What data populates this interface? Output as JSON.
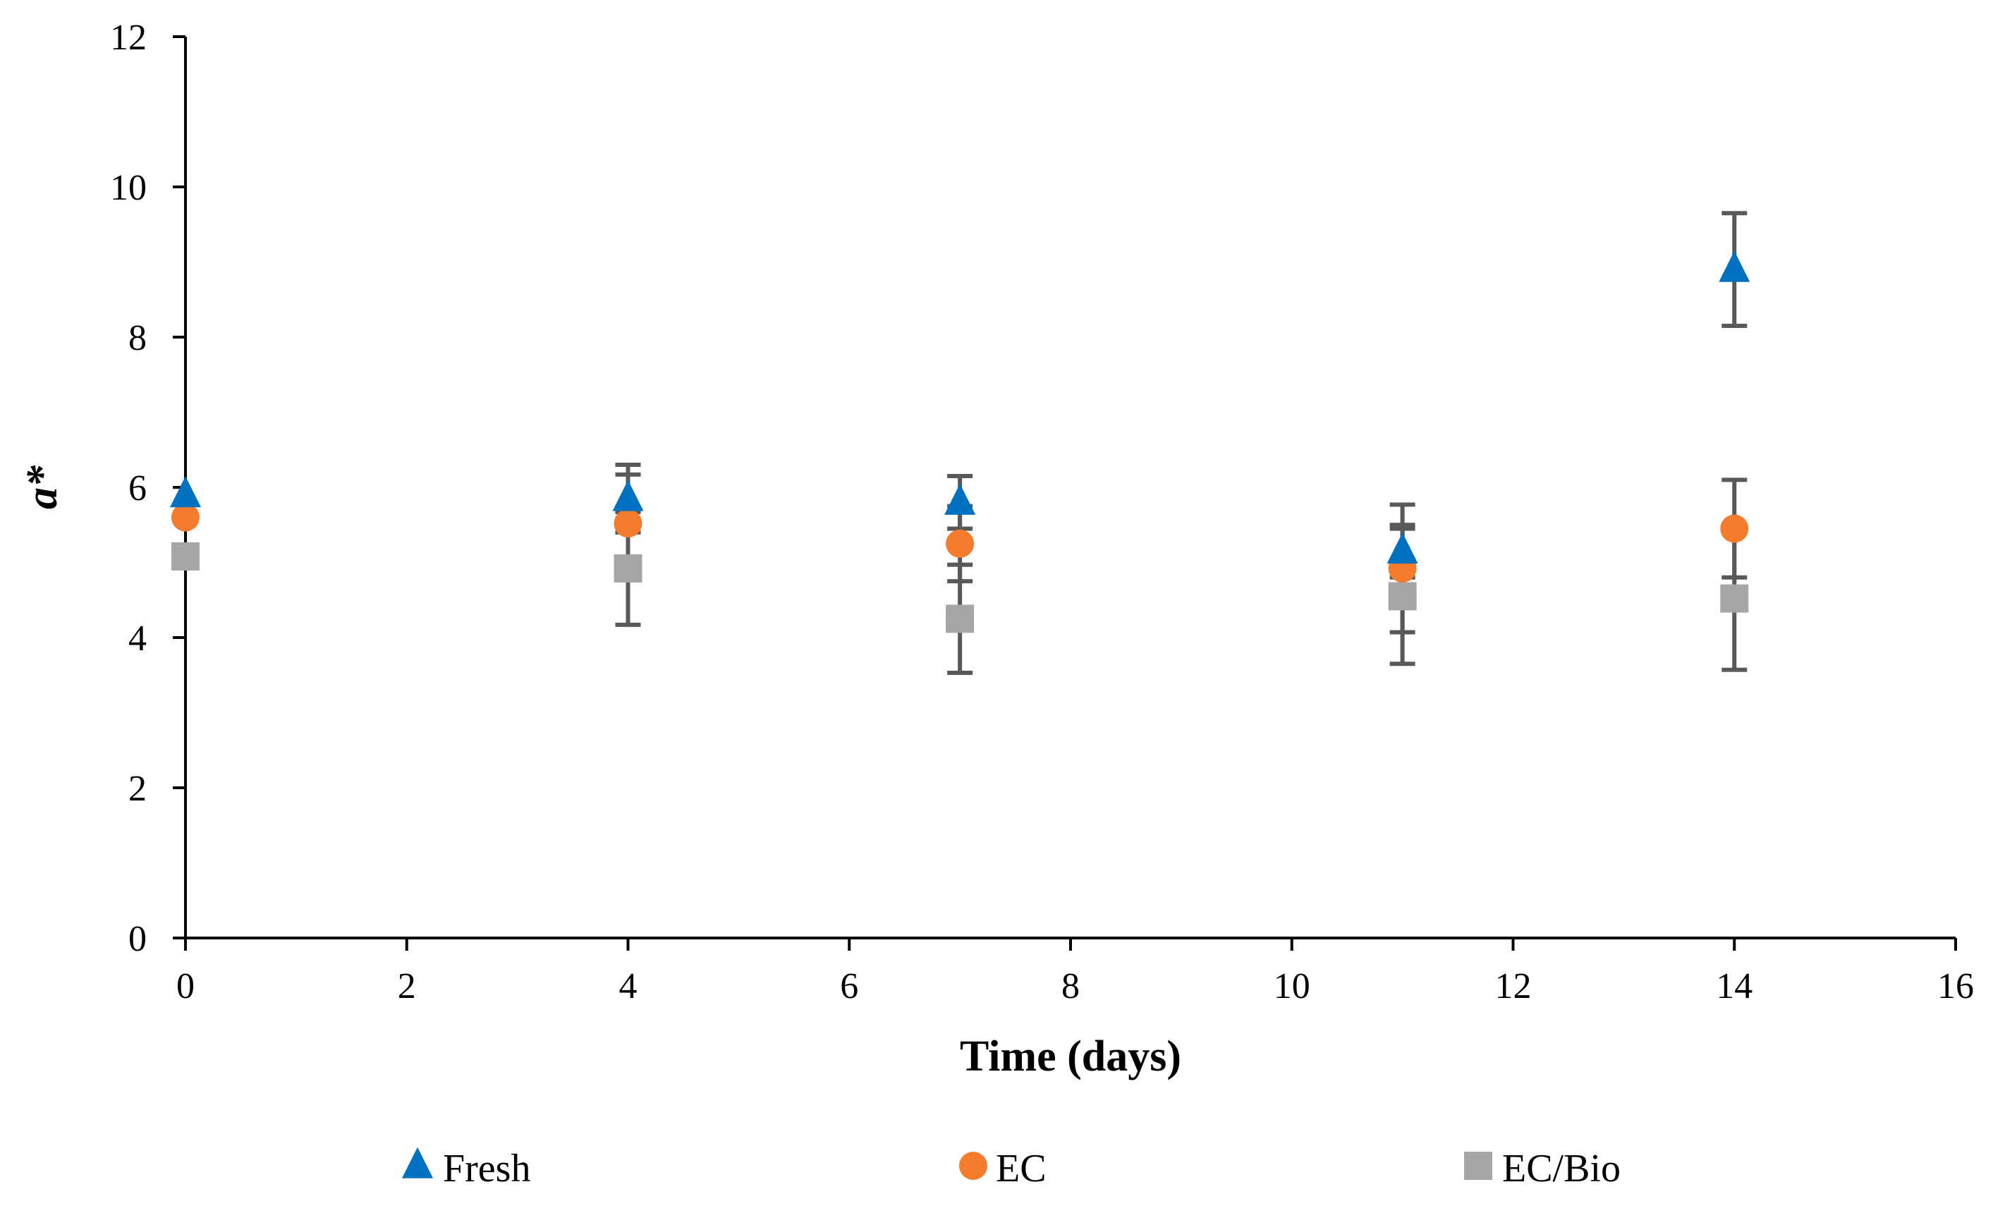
{
  "chart_data": {
    "type": "scatter",
    "title": "",
    "xlabel": "Time (days)",
    "ylabel": "a*",
    "xlim": [
      0,
      16
    ],
    "ylim": [
      0,
      12
    ],
    "xticks": [
      0,
      2,
      4,
      6,
      8,
      10,
      12,
      14,
      16
    ],
    "yticks": [
      0,
      2,
      4,
      6,
      8,
      10,
      12
    ],
    "grid": false,
    "legend_position": "bottom",
    "series": [
      {
        "name": "Fresh",
        "marker": "triangle",
        "color": "#0070C0",
        "x": [
          0,
          4,
          7,
          11,
          14
        ],
        "y": [
          5.9,
          5.85,
          5.8,
          5.15,
          8.9
        ],
        "err": [
          0,
          0.45,
          0.35,
          0.35,
          0.75
        ]
      },
      {
        "name": "EC",
        "marker": "circle",
        "color": "#F47C2C",
        "x": [
          0,
          4,
          7,
          11,
          14
        ],
        "y": [
          5.6,
          5.52,
          5.25,
          4.92,
          5.45
        ],
        "err": [
          0,
          0.65,
          0.5,
          0.85,
          0.65
        ]
      },
      {
        "name": "EC/Bio",
        "marker": "square",
        "color": "#A6A6A6",
        "x": [
          0,
          4,
          7,
          11,
          14
        ],
        "y": [
          5.08,
          4.92,
          4.25,
          4.55,
          4.52
        ],
        "err": [
          0,
          0.75,
          0.72,
          0.9,
          0.95
        ]
      }
    ],
    "error_bar_color": "#595959"
  }
}
